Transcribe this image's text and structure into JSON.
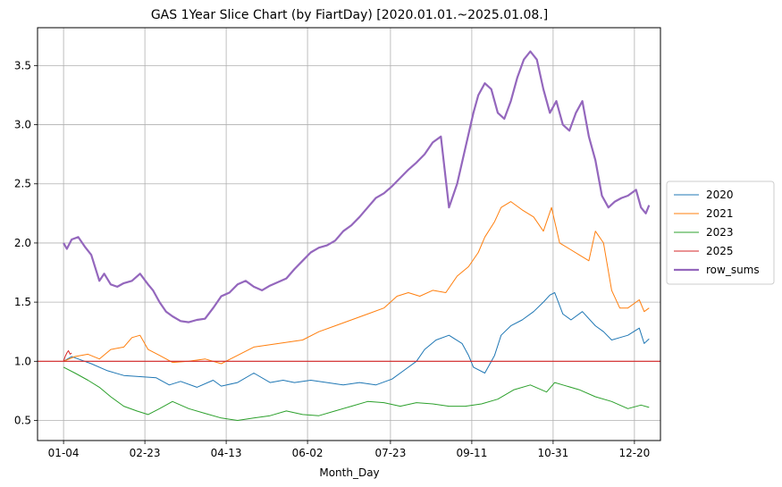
{
  "chart_data": {
    "type": "line",
    "title": "GAS 1Year Slice Chart (by FiartDay) [2020.01.01.~2025.01.08.]",
    "xlabel": "Month_Day",
    "ylabel": "",
    "x_tick_labels": [
      "01-04",
      "02-23",
      "04-13",
      "06-02",
      "07-23",
      "09-11",
      "10-31",
      "12-20"
    ],
    "x_tick_days": [
      3,
      53,
      103,
      153,
      204,
      254,
      304,
      354
    ],
    "xlim": [
      -13,
      370
    ],
    "ylim": [
      0.33,
      3.82
    ],
    "y_ticks": [
      0.5,
      1.0,
      1.5,
      2.0,
      2.5,
      3.0,
      3.5
    ],
    "y_tick_labels": [
      "0.5",
      "1.0",
      "1.5",
      "2.0",
      "2.5",
      "3.0",
      "3.5"
    ],
    "grid": true,
    "legend_position": "center-right",
    "reference_line": {
      "y": 1.0,
      "color": "#d62728"
    },
    "series": [
      {
        "name": "2020",
        "color": "#1f77b4",
        "width": 1,
        "x": [
          3,
          8,
          12,
          20,
          30,
          40,
          50,
          60,
          68,
          75,
          85,
          95,
          100,
          110,
          120,
          130,
          138,
          145,
          155,
          165,
          175,
          185,
          195,
          205,
          212,
          220,
          225,
          232,
          240,
          248,
          252,
          255,
          262,
          268,
          272,
          278,
          285,
          292,
          298,
          302,
          305,
          310,
          315,
          322,
          330,
          335,
          340,
          345,
          350,
          357,
          360,
          363
        ],
        "y": [
          1.0,
          1.04,
          1.02,
          0.98,
          0.92,
          0.88,
          0.87,
          0.86,
          0.8,
          0.83,
          0.78,
          0.84,
          0.79,
          0.82,
          0.9,
          0.82,
          0.84,
          0.82,
          0.84,
          0.82,
          0.8,
          0.82,
          0.8,
          0.85,
          0.92,
          1.0,
          1.1,
          1.18,
          1.22,
          1.15,
          1.05,
          0.95,
          0.9,
          1.05,
          1.22,
          1.3,
          1.35,
          1.42,
          1.5,
          1.56,
          1.58,
          1.4,
          1.35,
          1.42,
          1.3,
          1.25,
          1.18,
          1.2,
          1.22,
          1.28,
          1.15,
          1.19
        ]
      },
      {
        "name": "2021",
        "color": "#ff7f0e",
        "width": 1,
        "x": [
          3,
          10,
          18,
          25,
          32,
          40,
          45,
          50,
          55,
          62,
          70,
          80,
          90,
          100,
          110,
          120,
          130,
          140,
          150,
          160,
          170,
          180,
          190,
          200,
          208,
          215,
          222,
          230,
          238,
          245,
          252,
          258,
          262,
          268,
          272,
          278,
          285,
          292,
          298,
          303,
          308,
          314,
          320,
          326,
          330,
          335,
          340,
          345,
          350,
          357,
          360,
          363
        ],
        "y": [
          1.0,
          1.04,
          1.06,
          1.02,
          1.1,
          1.12,
          1.2,
          1.22,
          1.1,
          1.05,
          0.99,
          1.0,
          1.02,
          0.98,
          1.05,
          1.12,
          1.14,
          1.16,
          1.18,
          1.25,
          1.3,
          1.35,
          1.4,
          1.45,
          1.55,
          1.58,
          1.55,
          1.6,
          1.58,
          1.72,
          1.8,
          1.92,
          2.05,
          2.18,
          2.3,
          2.35,
          2.28,
          2.22,
          2.1,
          2.3,
          2.0,
          1.95,
          1.9,
          1.85,
          2.1,
          2.0,
          1.6,
          1.45,
          1.45,
          1.52,
          1.42,
          1.45
        ]
      },
      {
        "name": "2023",
        "color": "#2ca02c",
        "width": 1,
        "x": [
          3,
          10,
          18,
          25,
          32,
          40,
          48,
          55,
          62,
          70,
          80,
          90,
          100,
          110,
          120,
          130,
          140,
          150,
          160,
          170,
          180,
          190,
          200,
          210,
          220,
          230,
          240,
          250,
          260,
          270,
          280,
          290,
          300,
          305,
          310,
          320,
          330,
          340,
          350,
          358,
          363
        ],
        "y": [
          0.95,
          0.9,
          0.84,
          0.78,
          0.7,
          0.62,
          0.58,
          0.55,
          0.6,
          0.66,
          0.6,
          0.56,
          0.52,
          0.5,
          0.52,
          0.54,
          0.58,
          0.55,
          0.54,
          0.58,
          0.62,
          0.66,
          0.65,
          0.62,
          0.65,
          0.64,
          0.62,
          0.62,
          0.64,
          0.68,
          0.76,
          0.8,
          0.74,
          0.82,
          0.8,
          0.76,
          0.7,
          0.66,
          0.6,
          0.63,
          0.61
        ]
      },
      {
        "name": "2025",
        "color": "#d62728",
        "width": 1,
        "x": [
          3,
          4,
          5,
          6,
          7,
          8
        ],
        "y": [
          1.0,
          1.04,
          1.07,
          1.09,
          1.06,
          1.07
        ]
      },
      {
        "name": "row_sums",
        "color": "#9467bd",
        "width": 2.2,
        "x": [
          3,
          5,
          8,
          12,
          16,
          20,
          25,
          28,
          32,
          36,
          40,
          45,
          50,
          55,
          58,
          62,
          66,
          70,
          75,
          80,
          85,
          90,
          95,
          100,
          105,
          110,
          115,
          120,
          125,
          130,
          135,
          140,
          145,
          150,
          155,
          160,
          165,
          170,
          175,
          180,
          185,
          190,
          195,
          200,
          205,
          210,
          215,
          220,
          225,
          230,
          235,
          240,
          245,
          250,
          255,
          258,
          262,
          266,
          270,
          274,
          278,
          282,
          286,
          290,
          294,
          298,
          302,
          306,
          310,
          314,
          318,
          322,
          326,
          330,
          334,
          338,
          342,
          346,
          350,
          355,
          358,
          361,
          363
        ],
        "y": [
          2.0,
          1.95,
          2.03,
          2.05,
          1.97,
          1.9,
          1.68,
          1.74,
          1.65,
          1.63,
          1.66,
          1.68,
          1.74,
          1.65,
          1.6,
          1.5,
          1.42,
          1.38,
          1.34,
          1.33,
          1.35,
          1.36,
          1.45,
          1.55,
          1.58,
          1.65,
          1.68,
          1.63,
          1.6,
          1.64,
          1.67,
          1.7,
          1.78,
          1.85,
          1.92,
          1.96,
          1.98,
          2.02,
          2.1,
          2.15,
          2.22,
          2.3,
          2.38,
          2.42,
          2.48,
          2.55,
          2.62,
          2.68,
          2.75,
          2.85,
          2.9,
          2.3,
          2.5,
          2.8,
          3.1,
          3.25,
          3.35,
          3.3,
          3.1,
          3.05,
          3.2,
          3.4,
          3.55,
          3.62,
          3.55,
          3.3,
          3.1,
          3.2,
          3.0,
          2.95,
          3.1,
          3.2,
          2.9,
          2.7,
          2.4,
          2.3,
          2.35,
          2.38,
          2.4,
          2.45,
          2.3,
          2.25,
          2.32
        ]
      }
    ]
  }
}
